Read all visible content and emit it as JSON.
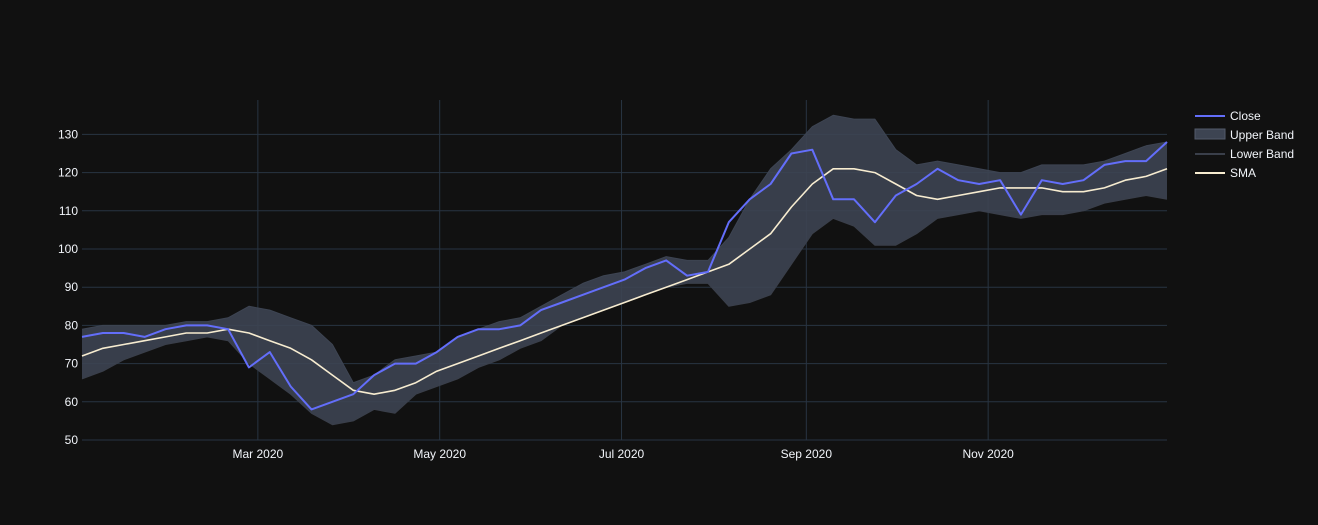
{
  "chart_data": {
    "type": "line",
    "title": "",
    "xlabel": "",
    "ylabel": "",
    "x_range": [
      "2020-01-02",
      "2020-12-31"
    ],
    "ylim": [
      50,
      139
    ],
    "y_ticks": [
      50,
      60,
      70,
      80,
      90,
      100,
      110,
      120,
      130
    ],
    "x_ticks": [
      {
        "date": "2020-03-01",
        "label": "Mar 2020"
      },
      {
        "date": "2020-05-01",
        "label": "May 2020"
      },
      {
        "date": "2020-07-01",
        "label": "Jul 2020"
      },
      {
        "date": "2020-09-01",
        "label": "Sep 2020"
      },
      {
        "date": "2020-11-01",
        "label": "Nov 2020"
      }
    ],
    "grid": true,
    "legend_position": "top-right",
    "colors": {
      "background": "#111111",
      "grid": "#283442",
      "close": "#636efa",
      "band_fill": "#3d4452",
      "lower_band_line": "#3a3f4a",
      "sma": "#f7ecd0",
      "text": "#f2f5fa"
    },
    "series": [
      {
        "name": "Close",
        "x": [
          "2020-01-02",
          "2020-01-09",
          "2020-01-16",
          "2020-01-23",
          "2020-01-30",
          "2020-02-06",
          "2020-02-13",
          "2020-02-20",
          "2020-02-27",
          "2020-03-05",
          "2020-03-12",
          "2020-03-19",
          "2020-03-26",
          "2020-04-02",
          "2020-04-09",
          "2020-04-16",
          "2020-04-23",
          "2020-04-30",
          "2020-05-07",
          "2020-05-14",
          "2020-05-21",
          "2020-05-28",
          "2020-06-04",
          "2020-06-11",
          "2020-06-18",
          "2020-06-25",
          "2020-07-02",
          "2020-07-09",
          "2020-07-16",
          "2020-07-23",
          "2020-07-30",
          "2020-08-06",
          "2020-08-13",
          "2020-08-20",
          "2020-08-27",
          "2020-09-03",
          "2020-09-10",
          "2020-09-17",
          "2020-09-24",
          "2020-10-01",
          "2020-10-08",
          "2020-10-15",
          "2020-10-22",
          "2020-10-29",
          "2020-11-05",
          "2020-11-12",
          "2020-11-19",
          "2020-11-26",
          "2020-12-03",
          "2020-12-10",
          "2020-12-17",
          "2020-12-24",
          "2020-12-31"
        ],
        "values": [
          77,
          78,
          78,
          77,
          79,
          80,
          80,
          79,
          69,
          73,
          64,
          58,
          60,
          62,
          67,
          70,
          70,
          73,
          77,
          79,
          79,
          80,
          84,
          86,
          88,
          90,
          92,
          95,
          97,
          93,
          94,
          107,
          113,
          117,
          125,
          126,
          113,
          113,
          107,
          114,
          117,
          121,
          118,
          117,
          118,
          109,
          118,
          117,
          118,
          122,
          123,
          123,
          128
        ]
      },
      {
        "name": "Upper Band",
        "x": [
          "2020-01-02",
          "2020-01-09",
          "2020-01-16",
          "2020-01-23",
          "2020-01-30",
          "2020-02-06",
          "2020-02-13",
          "2020-02-20",
          "2020-02-27",
          "2020-03-05",
          "2020-03-12",
          "2020-03-19",
          "2020-03-26",
          "2020-04-02",
          "2020-04-09",
          "2020-04-16",
          "2020-04-23",
          "2020-04-30",
          "2020-05-07",
          "2020-05-14",
          "2020-05-21",
          "2020-05-28",
          "2020-06-04",
          "2020-06-11",
          "2020-06-18",
          "2020-06-25",
          "2020-07-02",
          "2020-07-09",
          "2020-07-16",
          "2020-07-23",
          "2020-07-30",
          "2020-08-06",
          "2020-08-13",
          "2020-08-20",
          "2020-08-27",
          "2020-09-03",
          "2020-09-10",
          "2020-09-17",
          "2020-09-24",
          "2020-10-01",
          "2020-10-08",
          "2020-10-15",
          "2020-10-22",
          "2020-10-29",
          "2020-11-05",
          "2020-11-12",
          "2020-11-19",
          "2020-11-26",
          "2020-12-03",
          "2020-12-10",
          "2020-12-17",
          "2020-12-24",
          "2020-12-31"
        ],
        "values": [
          79,
          80,
          80,
          80,
          80,
          81,
          81,
          82,
          85,
          84,
          82,
          80,
          75,
          65,
          67,
          71,
          72,
          73,
          77,
          79,
          81,
          82,
          85,
          88,
          91,
          93,
          94,
          96,
          98,
          97,
          97,
          103,
          113,
          121,
          126,
          132,
          135,
          134,
          134,
          126,
          122,
          123,
          122,
          121,
          120,
          120,
          122,
          122,
          122,
          123,
          125,
          127,
          128
        ]
      },
      {
        "name": "Lower Band",
        "x": [
          "2020-01-02",
          "2020-01-09",
          "2020-01-16",
          "2020-01-23",
          "2020-01-30",
          "2020-02-06",
          "2020-02-13",
          "2020-02-20",
          "2020-02-27",
          "2020-03-05",
          "2020-03-12",
          "2020-03-19",
          "2020-03-26",
          "2020-04-02",
          "2020-04-09",
          "2020-04-16",
          "2020-04-23",
          "2020-04-30",
          "2020-05-07",
          "2020-05-14",
          "2020-05-21",
          "2020-05-28",
          "2020-06-04",
          "2020-06-11",
          "2020-06-18",
          "2020-06-25",
          "2020-07-02",
          "2020-07-09",
          "2020-07-16",
          "2020-07-23",
          "2020-07-30",
          "2020-08-06",
          "2020-08-13",
          "2020-08-20",
          "2020-08-27",
          "2020-09-03",
          "2020-09-10",
          "2020-09-17",
          "2020-09-24",
          "2020-10-01",
          "2020-10-08",
          "2020-10-15",
          "2020-10-22",
          "2020-10-29",
          "2020-11-05",
          "2020-11-12",
          "2020-11-19",
          "2020-11-26",
          "2020-12-03",
          "2020-12-10",
          "2020-12-17",
          "2020-12-24",
          "2020-12-31"
        ],
        "values": [
          66,
          68,
          71,
          73,
          75,
          76,
          77,
          76,
          70,
          66,
          62,
          57,
          54,
          55,
          58,
          57,
          62,
          64,
          66,
          69,
          71,
          74,
          76,
          80,
          82,
          84,
          86,
          88,
          90,
          91,
          91,
          85,
          86,
          88,
          96,
          104,
          108,
          106,
          101,
          101,
          104,
          108,
          109,
          110,
          109,
          108,
          109,
          109,
          110,
          112,
          113,
          114,
          113
        ]
      },
      {
        "name": "SMA",
        "x": [
          "2020-01-02",
          "2020-01-09",
          "2020-01-16",
          "2020-01-23",
          "2020-01-30",
          "2020-02-06",
          "2020-02-13",
          "2020-02-20",
          "2020-02-27",
          "2020-03-05",
          "2020-03-12",
          "2020-03-19",
          "2020-03-26",
          "2020-04-02",
          "2020-04-09",
          "2020-04-16",
          "2020-04-23",
          "2020-04-30",
          "2020-05-07",
          "2020-05-14",
          "2020-05-21",
          "2020-05-28",
          "2020-06-04",
          "2020-06-11",
          "2020-06-18",
          "2020-06-25",
          "2020-07-02",
          "2020-07-09",
          "2020-07-16",
          "2020-07-23",
          "2020-07-30",
          "2020-08-06",
          "2020-08-13",
          "2020-08-20",
          "2020-08-27",
          "2020-09-03",
          "2020-09-10",
          "2020-09-17",
          "2020-09-24",
          "2020-10-01",
          "2020-10-08",
          "2020-10-15",
          "2020-10-22",
          "2020-10-29",
          "2020-11-05",
          "2020-11-12",
          "2020-11-19",
          "2020-11-26",
          "2020-12-03",
          "2020-12-10",
          "2020-12-17",
          "2020-12-24",
          "2020-12-31"
        ],
        "values": [
          72,
          74,
          75,
          76,
          77,
          78,
          78,
          79,
          78,
          76,
          74,
          71,
          67,
          63,
          62,
          63,
          65,
          68,
          70,
          72,
          74,
          76,
          78,
          80,
          82,
          84,
          86,
          88,
          90,
          92,
          94,
          96,
          100,
          104,
          111,
          117,
          121,
          121,
          120,
          117,
          114,
          113,
          114,
          115,
          116,
          116,
          116,
          115,
          115,
          116,
          118,
          119,
          121
        ]
      }
    ],
    "legend": [
      "Close",
      "Upper Band",
      "Lower Band",
      "SMA"
    ]
  }
}
